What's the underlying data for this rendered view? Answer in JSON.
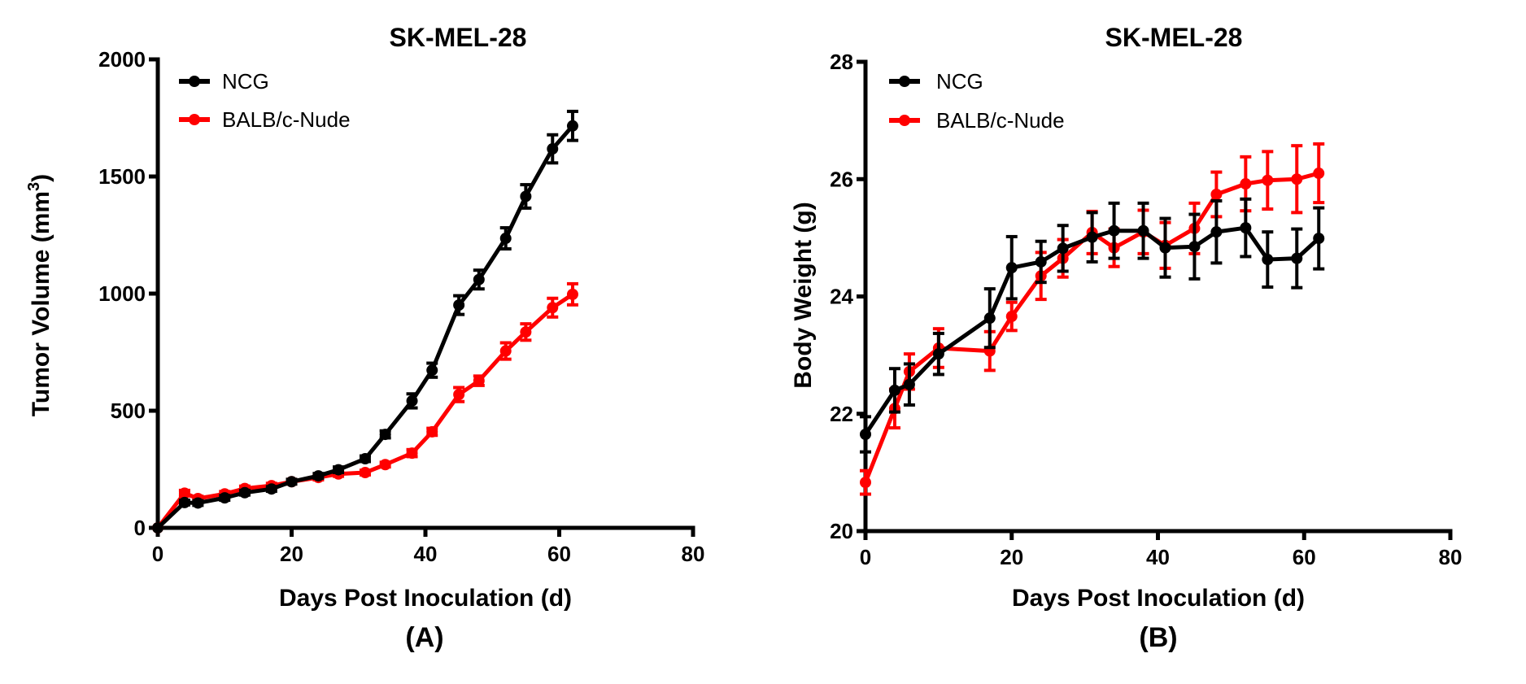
{
  "chart_data": [
    {
      "type": "line",
      "panel_label": "(A)",
      "title": "SK-MEL-28",
      "xlabel": "Days Post Inoculation (d)",
      "ylabel": "Tumor Volume (mm",
      "ylabel_superscript": "3",
      "ylabel_suffix": ")",
      "xlim": [
        0,
        80
      ],
      "ylim": [
        0,
        2000
      ],
      "xticks": [
        0,
        20,
        40,
        60,
        80
      ],
      "xtick_labels": [
        "0",
        "20",
        "40",
        "60",
        "80"
      ],
      "yticks": [
        0,
        500,
        1000,
        1500,
        2000
      ],
      "ytick_labels": [
        "0",
        "500",
        "1000",
        "1500",
        "2000"
      ],
      "grid": false,
      "legend_position": "top-left",
      "series": [
        {
          "name": "NCG",
          "color": "#000000",
          "x": [
            0,
            4,
            6,
            10,
            13,
            17,
            20,
            24,
            27,
            31,
            34,
            38,
            41,
            45,
            48,
            52,
            55,
            59,
            62
          ],
          "y": [
            0,
            108,
            106,
            128,
            150,
            166,
            197,
            222,
            248,
            295,
            399,
            542,
            673,
            951,
            1060,
            1236,
            1415,
            1618,
            1716
          ],
          "error": [
            0,
            10,
            10,
            10,
            10,
            10,
            10,
            10,
            12,
            12,
            15,
            30,
            30,
            40,
            40,
            45,
            50,
            60,
            62
          ]
        },
        {
          "name": "BALB/c-Nude",
          "color": "#ff0000",
          "x": [
            0,
            4,
            6,
            10,
            13,
            17,
            20,
            24,
            27,
            31,
            34,
            38,
            41,
            45,
            48,
            52,
            55,
            59,
            62
          ],
          "y": [
            0,
            148,
            125,
            145,
            168,
            180,
            197,
            215,
            230,
            236,
            270,
            319,
            410,
            569,
            628,
            755,
            836,
            940,
            997
          ],
          "error": [
            0,
            12,
            10,
            10,
            10,
            10,
            10,
            10,
            10,
            10,
            10,
            15,
            15,
            30,
            20,
            35,
            35,
            40,
            45
          ]
        }
      ]
    },
    {
      "type": "line",
      "panel_label": "(B)",
      "title": "SK-MEL-28",
      "xlabel": "Days Post Inoculation (d)",
      "ylabel": "Body Weight (g)",
      "xlim": [
        0,
        80
      ],
      "ylim": [
        20,
        28
      ],
      "xticks": [
        0,
        20,
        40,
        60,
        80
      ],
      "xtick_labels": [
        "0",
        "20",
        "40",
        "60",
        "80"
      ],
      "yticks": [
        20,
        22,
        24,
        26,
        28
      ],
      "ytick_labels": [
        "20",
        "22",
        "24",
        "26",
        "28"
      ],
      "grid": false,
      "legend_position": "top-left",
      "series": [
        {
          "name": "NCG",
          "color": "#000000",
          "x": [
            0,
            4,
            6,
            10,
            17,
            20,
            24,
            27,
            31,
            34,
            38,
            41,
            45,
            48,
            52,
            55,
            59,
            62
          ],
          "y": [
            21.65,
            22.4,
            22.5,
            23.02,
            23.63,
            24.49,
            24.59,
            24.82,
            25.01,
            25.12,
            25.12,
            24.83,
            24.85,
            25.1,
            25.17,
            24.63,
            24.65,
            24.99
          ],
          "error": [
            0.3,
            0.37,
            0.35,
            0.35,
            0.5,
            0.53,
            0.35,
            0.39,
            0.42,
            0.47,
            0.47,
            0.5,
            0.55,
            0.53,
            0.49,
            0.47,
            0.5,
            0.52
          ]
        },
        {
          "name": "BALB/c-Nude",
          "color": "#ff0000",
          "x": [
            0,
            4,
            6,
            10,
            17,
            20,
            24,
            27,
            31,
            34,
            38,
            41,
            45,
            48,
            52,
            55,
            59,
            62
          ],
          "y": [
            20.83,
            22.09,
            22.72,
            23.12,
            23.07,
            23.66,
            24.35,
            24.65,
            25.09,
            24.83,
            25.1,
            24.87,
            25.16,
            25.74,
            25.92,
            25.98,
            26.0,
            26.1
          ],
          "error": [
            0.2,
            0.33,
            0.3,
            0.33,
            0.33,
            0.24,
            0.4,
            0.32,
            0.36,
            0.32,
            0.37,
            0.39,
            0.43,
            0.38,
            0.46,
            0.49,
            0.57,
            0.5
          ]
        }
      ]
    }
  ]
}
